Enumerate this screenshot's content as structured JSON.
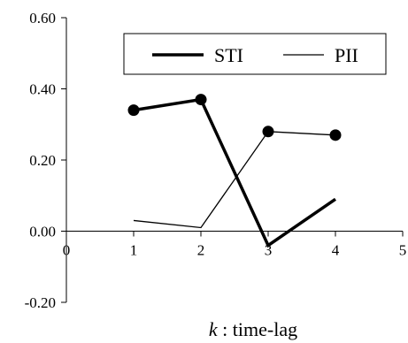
{
  "chart_data": {
    "type": "line",
    "title": "",
    "xlabel_var": "k",
    "xlabel_rest": " : time-lag",
    "ylabel": "",
    "xlim": [
      0,
      5
    ],
    "ylim": [
      -0.2,
      0.6
    ],
    "xticks": [
      "0",
      "1",
      "2",
      "3",
      "4",
      "5"
    ],
    "yticks": [
      "-0.20",
      "0.00",
      "0.20",
      "0.40",
      "0.60"
    ],
    "grid": false,
    "legend_position": "top-right",
    "x": [
      1,
      2,
      3,
      4
    ],
    "series": [
      {
        "name": "STI",
        "values": [
          0.34,
          0.37,
          -0.04,
          0.09
        ],
        "style": "thick"
      },
      {
        "name": "PII",
        "values": [
          0.03,
          0.01,
          0.28,
          0.27
        ],
        "style": "thin"
      }
    ],
    "markers": {
      "series": "dots",
      "x": [
        1,
        2,
        3,
        4
      ],
      "values": [
        0.34,
        0.37,
        0.28,
        0.27
      ]
    }
  }
}
